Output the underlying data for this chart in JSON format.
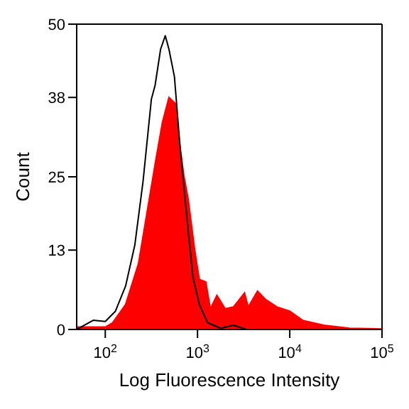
{
  "chart_data": {
    "type": "area",
    "xlabel": "Log Fluorescence Intensity",
    "ylabel": "Count",
    "log": "x",
    "xlim": [
      49,
      100000
    ],
    "xticks": [
      {
        "value": 100,
        "label": "10$^{2}$"
      },
      {
        "value": 1000,
        "label": "10$^{3}$"
      },
      {
        "value": 10000,
        "label": "10$^{4}$"
      },
      {
        "value": 100000,
        "label": "10$^{5}$"
      }
    ],
    "ylim": [
      0,
      50
    ],
    "yticks": [
      0,
      13,
      25,
      38,
      50
    ],
    "grid": false,
    "legend": false,
    "series": [
      {
        "color": "#ff0000",
        "x": [
          49,
          100,
          120,
          166,
          229,
          282,
          355,
          417,
          490,
          575,
          646,
          708,
          794,
          933,
          1047,
          1230,
          1380,
          1622,
          1995,
          2455,
          3236,
          3548,
          4467,
          5495,
          7244,
          10000,
          13804,
          23442,
          44668,
          100000
        ],
        "values": [
          0.4,
          0.4,
          1.1,
          4.1,
          10.8,
          19,
          28,
          34,
          38,
          37,
          30,
          25.4,
          21.3,
          13,
          8.2,
          7.8,
          3.4,
          5.6,
          3.4,
          3.7,
          6,
          3.7,
          6.3,
          4.9,
          3.7,
          3,
          1.5,
          0.7,
          0.2,
          0.1
        ]
      },
      {
        "type": "line",
        "color": "#000000",
        "x": [
          49,
          74,
          100,
          129,
          166,
          209,
          257,
          316,
          347,
          398,
          447,
          490,
          562,
          646,
          759,
          891,
          1047,
          1288,
          1778,
          2455,
          3388,
          100000
        ],
        "values": [
          0,
          1.5,
          1.3,
          3,
          7.1,
          13.8,
          24.3,
          37.7,
          40,
          45.9,
          48.1,
          45.9,
          41.4,
          30,
          19,
          8.6,
          4.1,
          1.1,
          0.2,
          0.7,
          0,
          0
        ]
      }
    ]
  }
}
